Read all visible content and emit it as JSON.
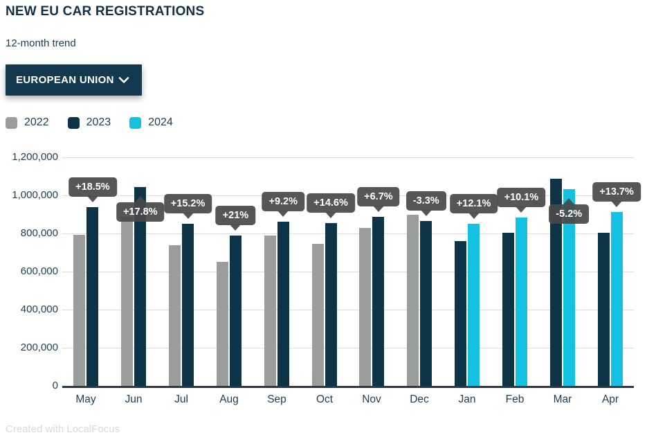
{
  "header": {
    "title": "NEW EU CAR REGISTRATIONS",
    "subtitle": "12-month trend"
  },
  "dropdown": {
    "label": "EUROPEAN UNION"
  },
  "legend": {
    "items": [
      {
        "label": "2022",
        "color": "#9b9d9d"
      },
      {
        "label": "2023",
        "color": "#0d3447"
      },
      {
        "label": "2024",
        "color": "#15c1e1"
      }
    ]
  },
  "chart_data": {
    "type": "bar",
    "title": "NEW EU CAR REGISTRATIONS",
    "subtitle": "12-month trend",
    "categories": [
      "May",
      "Jun",
      "Jul",
      "Aug",
      "Sep",
      "Oct",
      "Nov",
      "Dec",
      "Jan",
      "Feb",
      "Mar",
      "Apr"
    ],
    "series": [
      {
        "name": "2022",
        "color": "#9b9d9d",
        "values": [
          792000,
          886500,
          739000,
          651000,
          788500,
          746500,
          830000,
          896500,
          null,
          null,
          null,
          null
        ]
      },
      {
        "name": "2023",
        "color": "#0d3447",
        "values": [
          939000,
          1045000,
          851000,
          787500,
          861000,
          855500,
          885500,
          867000,
          760000,
          802500,
          1088500,
          804000
        ]
      },
      {
        "name": "2024",
        "color": "#15c1e1",
        "values": [
          null,
          null,
          null,
          null,
          null,
          null,
          null,
          null,
          851500,
          883500,
          1032000,
          914000
        ]
      }
    ],
    "annotations": [
      {
        "category": "May",
        "label": "+18.5%",
        "position": "above"
      },
      {
        "category": "Jun",
        "label": "+17.8%",
        "position": "below"
      },
      {
        "category": "Jul",
        "label": "+15.2%",
        "position": "above"
      },
      {
        "category": "Aug",
        "label": "+21%",
        "position": "above"
      },
      {
        "category": "Sep",
        "label": "+9.2%",
        "position": "above"
      },
      {
        "category": "Oct",
        "label": "+14.6%",
        "position": "above"
      },
      {
        "category": "Nov",
        "label": "+6.7%",
        "position": "above"
      },
      {
        "category": "Dec",
        "label": "-3.3%",
        "position": "above"
      },
      {
        "category": "Jan",
        "label": "+12.1%",
        "position": "above"
      },
      {
        "category": "Feb",
        "label": "+10.1%",
        "position": "above"
      },
      {
        "category": "Mar",
        "label": "-5.2%",
        "position": "below"
      },
      {
        "category": "Apr",
        "label": "+13.7%",
        "position": "above"
      }
    ],
    "xlabel": "",
    "ylabel": "",
    "ylim": [
      0,
      1200000
    ],
    "ytick_interval": 200000,
    "ytick_labels": [
      "0",
      "200,000",
      "400,000",
      "600,000",
      "800,000",
      "1,000,000",
      "1,200,000"
    ],
    "grid": true,
    "legend_position": "top-left"
  },
  "colors": {
    "title_text": "#13304a",
    "body_text": "#1d3c52",
    "button_bg": "#123950",
    "button_text": "#ffffff",
    "gridline": "#dcdcdc",
    "axis_line": "#2b3844",
    "tooltip_bg": "#4a4a4a",
    "tooltip_text": "#ffffff",
    "footer_text": "#dadada"
  },
  "footer": {
    "credit": "Created with LocalFocus"
  }
}
